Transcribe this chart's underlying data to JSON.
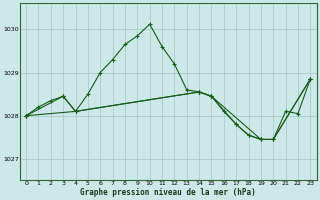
{
  "title": "Graphe pression niveau de la mer (hPa)",
  "background_color": "#cce8e8",
  "grid_color": "#aacccc",
  "line_color": "#1a5c1a",
  "marker_color": "#1a5c1a",
  "xlim": [
    -0.5,
    23.5
  ],
  "ylim": [
    1026.5,
    1030.6
  ],
  "yticks": [
    1027,
    1028,
    1029,
    1030
  ],
  "xticks": [
    0,
    1,
    2,
    3,
    4,
    5,
    6,
    7,
    8,
    9,
    10,
    11,
    12,
    13,
    14,
    15,
    16,
    17,
    18,
    19,
    20,
    21,
    22,
    23
  ],
  "series": [
    {
      "x": [
        0,
        1,
        2,
        3,
        4,
        5,
        6,
        7,
        8,
        9,
        10,
        11,
        12,
        13,
        14,
        15,
        16,
        17,
        18,
        19,
        20,
        21,
        22,
        23
      ],
      "y": [
        1028.0,
        1028.2,
        1028.35,
        1028.45,
        1028.1,
        1028.5,
        1029.0,
        1029.3,
        1029.65,
        1029.85,
        1030.12,
        1029.6,
        1029.2,
        1028.6,
        1028.55,
        1028.45,
        1028.1,
        1027.8,
        1027.55,
        1027.45,
        1027.45,
        1028.1,
        1028.05,
        1028.85
      ]
    },
    {
      "x": [
        0,
        3,
        4,
        14,
        15,
        17,
        18,
        19,
        20,
        23
      ],
      "y": [
        1028.0,
        1028.45,
        1028.1,
        1028.55,
        1028.45,
        1027.8,
        1027.55,
        1027.45,
        1027.45,
        1028.85
      ]
    },
    {
      "x": [
        0,
        4,
        14,
        15,
        19,
        20,
        23
      ],
      "y": [
        1028.0,
        1028.1,
        1028.55,
        1028.45,
        1027.45,
        1027.45,
        1028.85
      ]
    }
  ]
}
